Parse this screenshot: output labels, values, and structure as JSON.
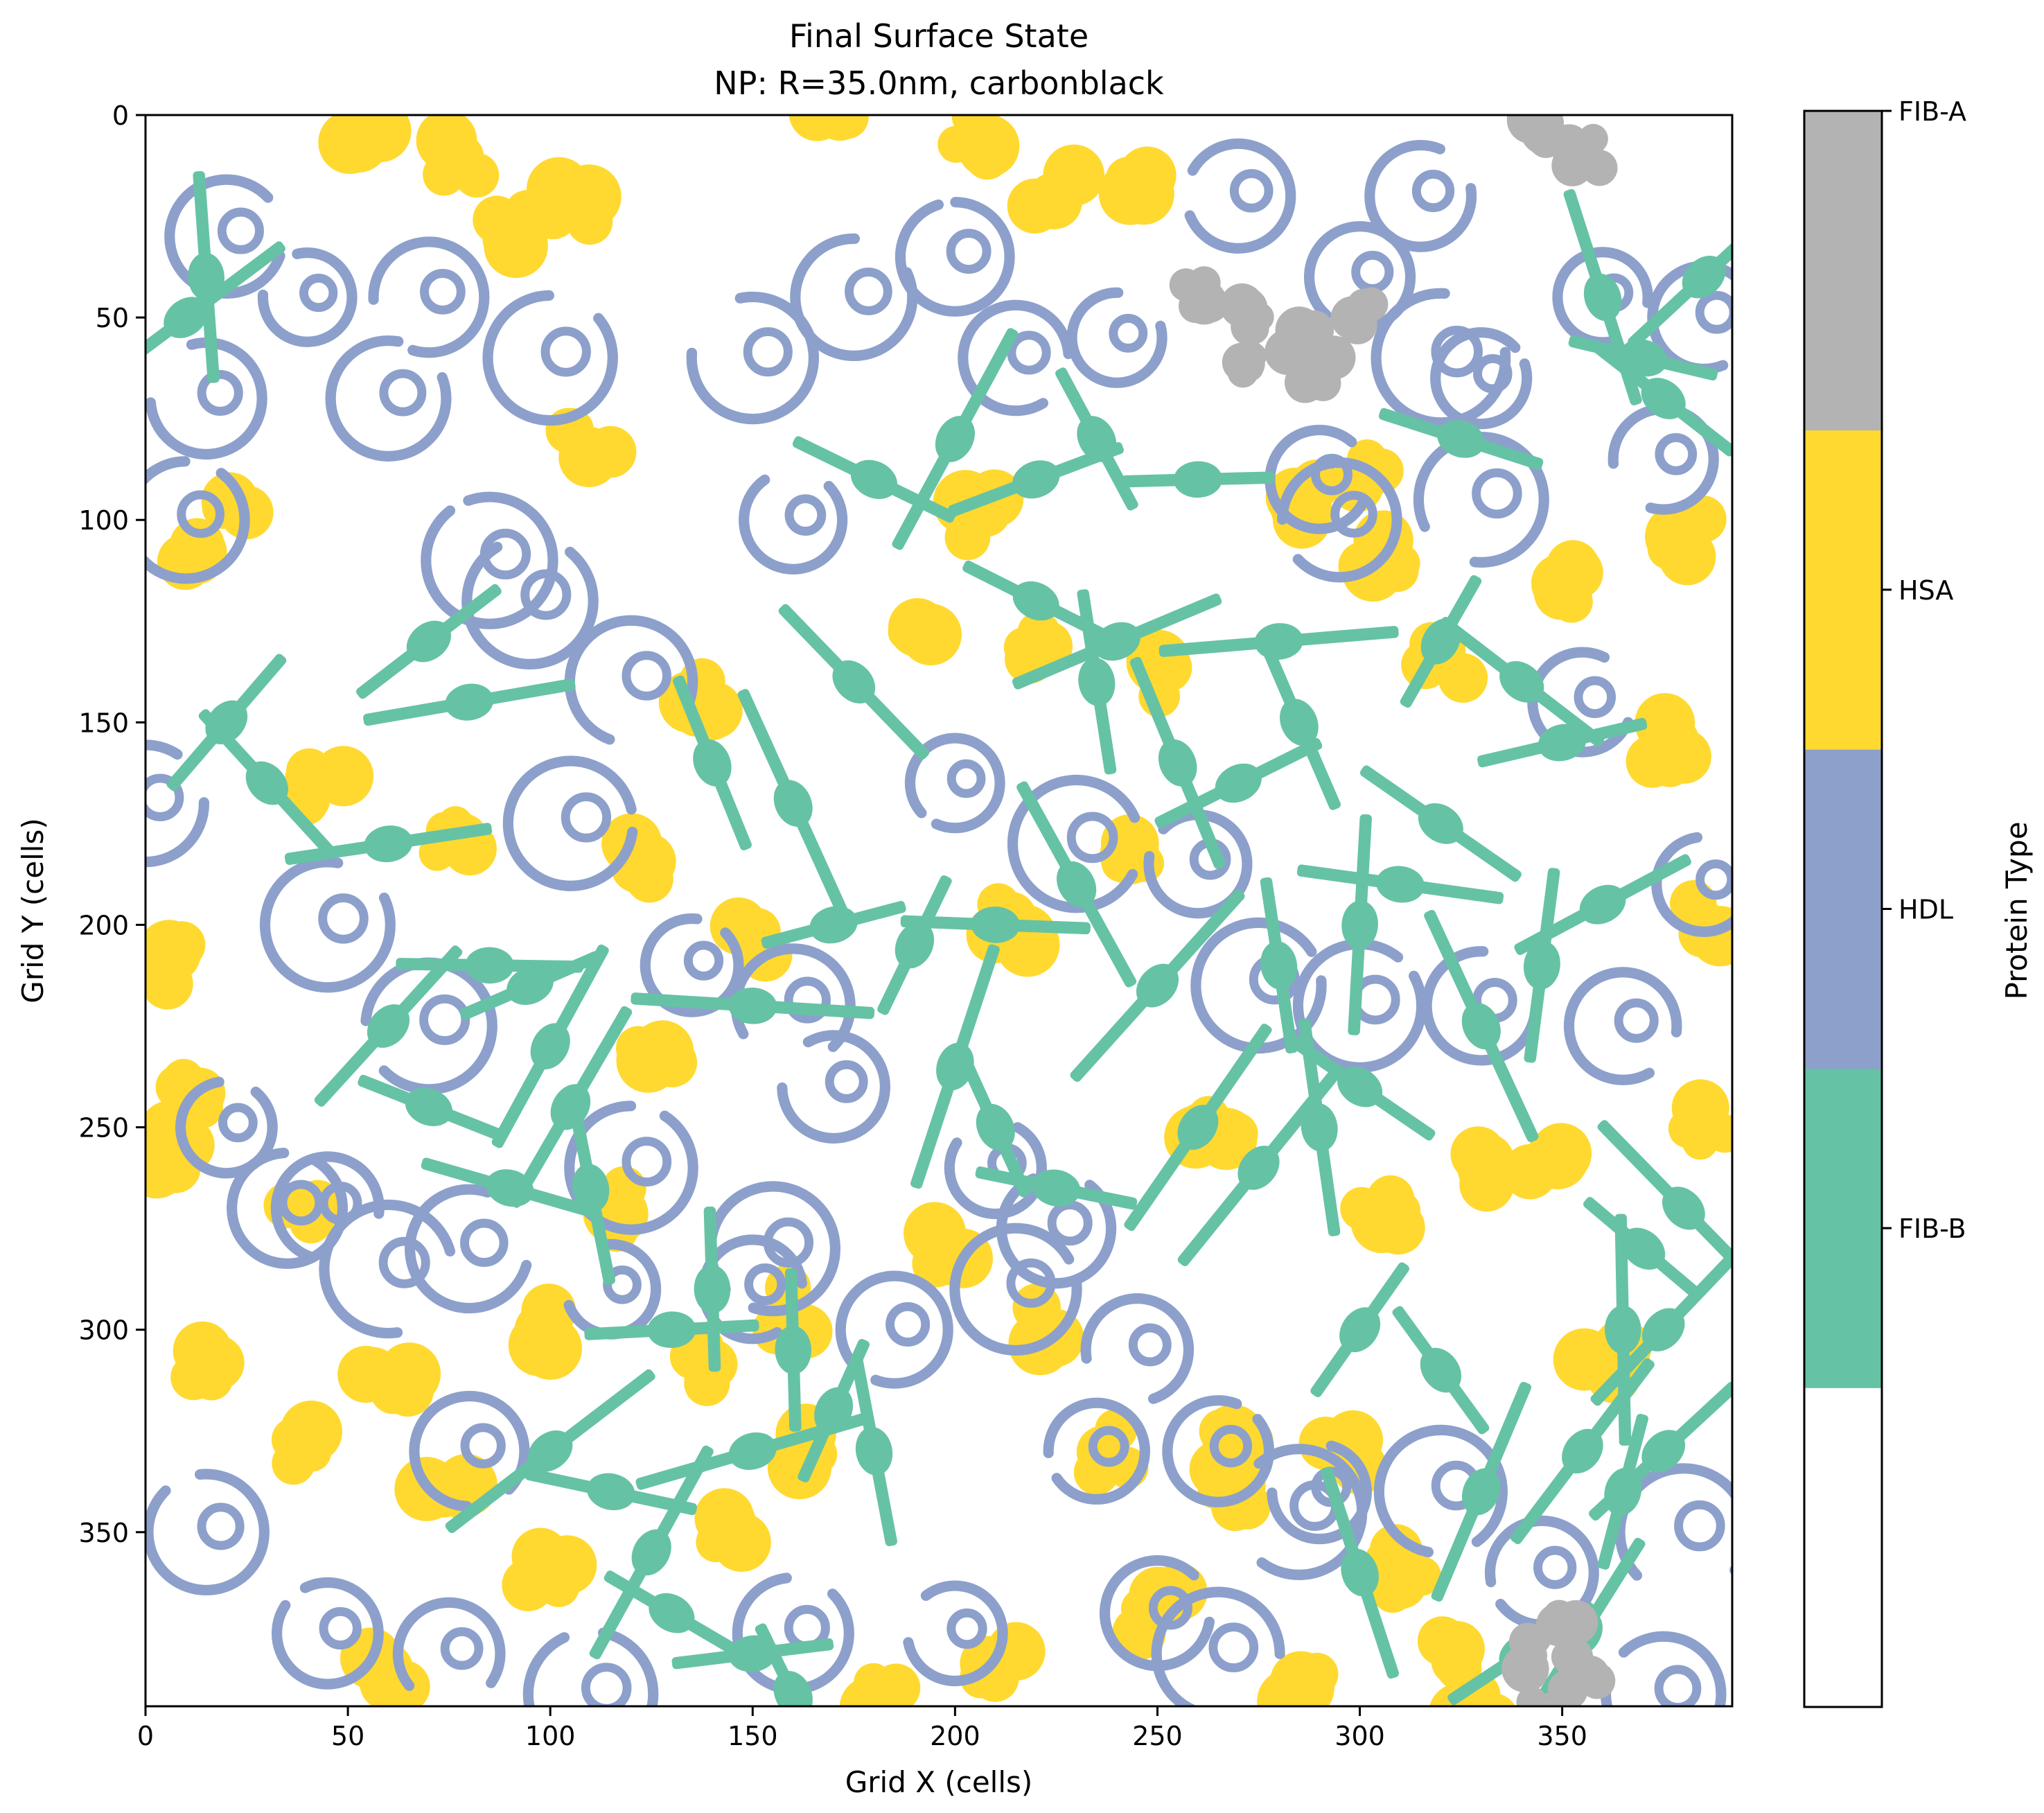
{
  "chart_data": {
    "type": "heatmap",
    "title_line1": "Final Surface State",
    "title_line2": "NP: R=35.0nm, carbonblack",
    "xlabel": "Grid X (cells)",
    "ylabel": "Grid Y (cells)",
    "xlim": [
      0,
      392
    ],
    "ylim": [
      393,
      0
    ],
    "xticks": [
      0,
      50,
      100,
      150,
      200,
      250,
      300,
      350
    ],
    "yticks": [
      0,
      50,
      100,
      150,
      200,
      250,
      300,
      350
    ],
    "colorbar": {
      "label": "Protein Type",
      "categories": [
        {
          "name": "",
          "color": "#ffffff"
        },
        {
          "name": "FIB-B",
          "color": "#66c2a5"
        },
        {
          "name": "HDL",
          "color": "#8da0cb"
        },
        {
          "name": "HSA",
          "color": "#ffd92f"
        },
        {
          "name": "FIB-A",
          "color": "#b3b3b3"
        }
      ]
    },
    "patches": {
      "HSA": [
        [
          55,
          3
        ],
        [
          77,
          10
        ],
        [
          105,
          22
        ],
        [
          12,
          110
        ],
        [
          20,
          100
        ],
        [
          90,
          28
        ],
        [
          170,
          0
        ],
        [
          205,
          5
        ],
        [
          225,
          18
        ],
        [
          243,
          18
        ],
        [
          110,
          82
        ],
        [
          205,
          100
        ],
        [
          190,
          125
        ],
        [
          218,
          130
        ],
        [
          248,
          140
        ],
        [
          140,
          145
        ],
        [
          45,
          165
        ],
        [
          75,
          180
        ],
        [
          125,
          185
        ],
        [
          150,
          205
        ],
        [
          215,
          200
        ],
        [
          245,
          180
        ],
        [
          285,
          95
        ],
        [
          300,
          90
        ],
        [
          305,
          110
        ],
        [
          320,
          135
        ],
        [
          355,
          115
        ],
        [
          380,
          105
        ],
        [
          375,
          155
        ],
        [
          385,
          200
        ],
        [
          385,
          250
        ],
        [
          10,
          210
        ],
        [
          5,
          255
        ],
        [
          125,
          235
        ],
        [
          10,
          240
        ],
        [
          265,
          250
        ],
        [
          305,
          270
        ],
        [
          345,
          260
        ],
        [
          360,
          310
        ],
        [
          95,
          300
        ],
        [
          15,
          310
        ],
        [
          60,
          310
        ],
        [
          75,
          340
        ],
        [
          40,
          330
        ],
        [
          140,
          310
        ],
        [
          165,
          330
        ],
        [
          145,
          350
        ],
        [
          100,
          360
        ],
        [
          200,
          280
        ],
        [
          220,
          300
        ],
        [
          270,
          340
        ],
        [
          295,
          330
        ],
        [
          310,
          360
        ],
        [
          320,
          380
        ],
        [
          285,
          390
        ],
        [
          330,
          395
        ],
        [
          180,
          390
        ],
        [
          210,
          385
        ],
        [
          60,
          385
        ],
        [
          120,
          270
        ],
        [
          160,
          295
        ],
        [
          40,
          270
        ],
        [
          250,
          370
        ],
        [
          330,
          260
        ],
        [
          240,
          330
        ],
        [
          270,
          330
        ]
      ],
      "HDL": [
        [
          20,
          30
        ],
        [
          40,
          45
        ],
        [
          70,
          45
        ],
        [
          60,
          70
        ],
        [
          100,
          60
        ],
        [
          150,
          60
        ],
        [
          175,
          45
        ],
        [
          200,
          35
        ],
        [
          215,
          60
        ],
        [
          240,
          55
        ],
        [
          300,
          40
        ],
        [
          320,
          60
        ],
        [
          360,
          45
        ],
        [
          385,
          50
        ],
        [
          375,
          85
        ],
        [
          330,
          95
        ],
        [
          295,
          100
        ],
        [
          85,
          110
        ],
        [
          120,
          140
        ],
        [
          105,
          175
        ],
        [
          45,
          200
        ],
        [
          70,
          225
        ],
        [
          135,
          210
        ],
        [
          160,
          220
        ],
        [
          200,
          165
        ],
        [
          230,
          180
        ],
        [
          260,
          185
        ],
        [
          275,
          215
        ],
        [
          300,
          220
        ],
        [
          330,
          220
        ],
        [
          365,
          225
        ],
        [
          385,
          190
        ],
        [
          355,
          145
        ],
        [
          20,
          250
        ],
        [
          35,
          270
        ],
        [
          60,
          285
        ],
        [
          80,
          280
        ],
        [
          115,
          290
        ],
        [
          150,
          290
        ],
        [
          185,
          300
        ],
        [
          215,
          290
        ],
        [
          235,
          330
        ],
        [
          245,
          305
        ],
        [
          265,
          330
        ],
        [
          290,
          340
        ],
        [
          320,
          340
        ],
        [
          345,
          360
        ],
        [
          380,
          350
        ],
        [
          375,
          390
        ],
        [
          45,
          375
        ],
        [
          75,
          380
        ],
        [
          110,
          390
        ],
        [
          160,
          375
        ],
        [
          200,
          375
        ],
        [
          250,
          370
        ],
        [
          265,
          380
        ],
        [
          0,
          170
        ],
        [
          15,
          350
        ],
        [
          15,
          70
        ],
        [
          170,
          240
        ],
        [
          120,
          260
        ],
        [
          155,
          280
        ],
        [
          210,
          260
        ],
        [
          225,
          275
        ],
        [
          10,
          100
        ],
        [
          160,
          100
        ],
        [
          290,
          90
        ],
        [
          315,
          20
        ],
        [
          270,
          20
        ],
        [
          330,
          65
        ],
        [
          95,
          120
        ],
        [
          45,
          270
        ],
        [
          80,
          330
        ],
        [
          285,
          345
        ]
      ],
      "FIB-B": [
        [
          10,
          50
        ],
        [
          15,
          40
        ],
        [
          70,
          130
        ],
        [
          80,
          145
        ],
        [
          20,
          150
        ],
        [
          30,
          165
        ],
        [
          60,
          180
        ],
        [
          180,
          90
        ],
        [
          200,
          80
        ],
        [
          220,
          90
        ],
        [
          235,
          80
        ],
        [
          260,
          90
        ],
        [
          280,
          130
        ],
        [
          320,
          130
        ],
        [
          340,
          140
        ],
        [
          350,
          155
        ],
        [
          325,
          80
        ],
        [
          360,
          45
        ],
        [
          370,
          60
        ],
        [
          375,
          70
        ],
        [
          385,
          40
        ],
        [
          210,
          200
        ],
        [
          230,
          190
        ],
        [
          250,
          215
        ],
        [
          280,
          210
        ],
        [
          300,
          200
        ],
        [
          310,
          190
        ],
        [
          320,
          175
        ],
        [
          260,
          250
        ],
        [
          275,
          260
        ],
        [
          290,
          250
        ],
        [
          300,
          240
        ],
        [
          330,
          225
        ],
        [
          345,
          210
        ],
        [
          360,
          195
        ],
        [
          370,
          280
        ],
        [
          380,
          270
        ],
        [
          365,
          300
        ],
        [
          355,
          330
        ],
        [
          330,
          340
        ],
        [
          300,
          360
        ],
        [
          300,
          300
        ],
        [
          320,
          310
        ],
        [
          160,
          305
        ],
        [
          170,
          320
        ],
        [
          180,
          330
        ],
        [
          130,
          300
        ],
        [
          140,
          290
        ],
        [
          150,
          330
        ],
        [
          100,
          330
        ],
        [
          115,
          340
        ],
        [
          125,
          355
        ],
        [
          130,
          370
        ],
        [
          150,
          380
        ],
        [
          160,
          390
        ],
        [
          85,
          210
        ],
        [
          95,
          215
        ],
        [
          100,
          230
        ],
        [
          70,
          245
        ],
        [
          60,
          225
        ],
        [
          105,
          245
        ],
        [
          90,
          265
        ],
        [
          110,
          265
        ],
        [
          200,
          235
        ],
        [
          210,
          250
        ],
        [
          225,
          265
        ],
        [
          150,
          220
        ],
        [
          170,
          200
        ],
        [
          190,
          205
        ],
        [
          255,
          160
        ],
        [
          270,
          165
        ],
        [
          285,
          150
        ],
        [
          235,
          140
        ],
        [
          240,
          130
        ],
        [
          220,
          120
        ],
        [
          175,
          140
        ],
        [
          160,
          170
        ],
        [
          140,
          160
        ],
        [
          340,
          380
        ],
        [
          355,
          375
        ],
        [
          365,
          340
        ],
        [
          375,
          330
        ],
        [
          375,
          300
        ]
      ],
      "FIB-A": [
        [
          260,
          45
        ],
        [
          275,
          50
        ],
        [
          285,
          55
        ],
        [
          300,
          50
        ],
        [
          270,
          60
        ],
        [
          290,
          62
        ],
        [
          345,
          5
        ],
        [
          355,
          10
        ],
        [
          340,
          380
        ],
        [
          350,
          370
        ],
        [
          355,
          385
        ],
        [
          345,
          395
        ]
      ]
    }
  }
}
